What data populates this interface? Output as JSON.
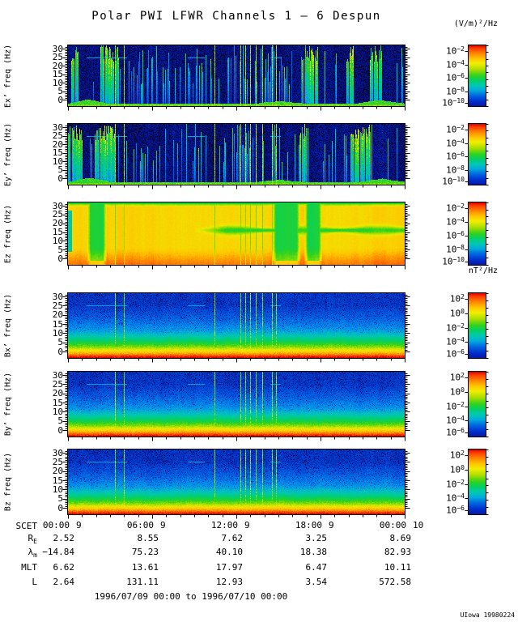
{
  "title": "Polar PWI LFWR Channels 1 — 6 Despun",
  "caption": "1996/07/09 00:00 to 1996/07/10 00:00",
  "credit": "UIowa 19980224",
  "units": {
    "electric": "(V/m)²/Hz",
    "magnetic": "nT²/Hz"
  },
  "yticks": [
    "30",
    "25",
    "20",
    "15",
    "10",
    "5",
    "0"
  ],
  "xaxis": {
    "label": "SCET",
    "ticks": [
      {
        "time": "00:00",
        "day": "9"
      },
      {
        "time": "06:00",
        "day": "9"
      },
      {
        "time": "12:00",
        "day": "9"
      },
      {
        "time": "18:00",
        "day": "9"
      },
      {
        "time": "00:00",
        "day": "10"
      }
    ]
  },
  "ephemeris": {
    "rows": [
      {
        "label": "R",
        "sub": "E",
        "values": [
          "2.52",
          "8.55",
          "7.62",
          "3.25",
          "8.69"
        ]
      },
      {
        "label": "λ",
        "sub": "m",
        "values": [
          "−14.84",
          "75.23",
          "40.10",
          "18.38",
          "82.93"
        ]
      },
      {
        "label": "MLT",
        "sub": "",
        "values": [
          "6.62",
          "13.61",
          "17.97",
          "6.47",
          "10.11"
        ]
      },
      {
        "label": "L",
        "sub": "",
        "values": [
          "2.64",
          "131.11",
          "12.93",
          "3.54",
          "572.58"
        ]
      }
    ]
  },
  "colorbars": {
    "electric": {
      "exps": [
        "−2",
        "−4",
        "−6",
        "−8",
        "−10"
      ]
    },
    "magnetic": {
      "exps": [
        "2",
        "0",
        "−2",
        "−4",
        "−6"
      ]
    }
  },
  "panels": [
    {
      "ylabel": "Ex’ freq (Hz)",
      "cbar": "electric",
      "kind": "E",
      "seed": 11
    },
    {
      "ylabel": "Ey’ freq (Hz)",
      "cbar": "electric",
      "kind": "E",
      "seed": 22
    },
    {
      "ylabel": "Ez freq (Hz)",
      "cbar": "electric",
      "kind": "Ez",
      "seed": 33
    },
    {
      "ylabel": "Bx’ freq (Hz)",
      "cbar": "magnetic",
      "kind": "B",
      "seed": 44
    },
    {
      "ylabel": "By’ freq (Hz)",
      "cbar": "magnetic",
      "kind": "B",
      "seed": 55
    },
    {
      "ylabel": "Bz freq (Hz)",
      "cbar": "magnetic",
      "kind": "B",
      "seed": 66
    }
  ],
  "render": {
    "event_lines": [
      0.14,
      0.166,
      0.435,
      0.512,
      0.527,
      0.542,
      0.557,
      0.577,
      0.605,
      0.617
    ],
    "artifact_segments": [
      [
        0.055,
        0.175
      ],
      [
        0.355,
        0.405
      ],
      [
        0.6,
        0.63
      ]
    ],
    "e_bright": [
      [
        [
          0.01,
          0.032
        ],
        [
          0.095,
          0.15
        ],
        [
          0.695,
          0.74
        ],
        [
          0.828,
          0.846
        ],
        [
          0.895,
          0.93
        ]
      ],
      [
        [
          0.0,
          0.04
        ],
        [
          0.08,
          0.14
        ],
        [
          0.688,
          0.712
        ],
        [
          0.838,
          0.902
        ]
      ]
    ],
    "e_band_humps": [
      [
        0.0,
        0.12,
        5
      ],
      [
        0.55,
        0.7,
        3
      ],
      [
        0.86,
        1.0,
        4
      ]
    ],
    "ez": {
      "green_regions": [
        [
          0.055,
          0.115
        ],
        [
          0.605,
          0.69
        ],
        [
          0.7,
          0.755
        ]
      ],
      "hband_start": 0.37,
      "hband_center": 0.44
    }
  },
  "chart_data": {
    "type": "heatmap",
    "title": "Polar PWI LFWR Channels 1 — 6 Despun",
    "subtitle": "1996/07/09 00:00 to 1996/07/10 00:00",
    "x_axis": {
      "label": "SCET",
      "tick_labels": [
        "00:00",
        "06:00",
        "12:00",
        "18:00",
        "00:00"
      ],
      "day_labels": [
        "9",
        "9",
        "9",
        "9",
        "10"
      ],
      "minor_tick_interval_hours": 1
    },
    "y_axis": {
      "label": "freq (Hz)",
      "range": [
        0,
        33
      ],
      "ticks": [
        0,
        5,
        10,
        15,
        20,
        25,
        30
      ]
    },
    "panels": [
      {
        "name": "Ex’",
        "units": "(V/m)²/Hz",
        "colorbar_ticks": [
          "1e-2",
          "1e-4",
          "1e-6",
          "1e-8",
          "1e-10"
        ],
        "description": "dark blue broadband background with many narrow cyan/green vertical bursts, thin green band at lowest frequencies, bright burst clusters near 00:30, 02:30-03:30, 12:00-15:00, 20:00-22:00"
      },
      {
        "name": "Ey’",
        "units": "(V/m)²/Hz",
        "colorbar_ticks": [
          "1e-2",
          "1e-4",
          "1e-6",
          "1e-8",
          "1e-10"
        ],
        "description": "similar to Ex’: dark blue with dense vertical cyan/green bursts and low-frequency green band"
      },
      {
        "name": "Ez",
        "units": "(V/m)²/Hz",
        "colorbar_ticks": [
          "1e-2",
          "1e-4",
          "1e-6",
          "1e-8",
          "1e-10"
        ],
        "description": "high broadband yellow/orange intensity all day; green lower-intensity patches near 01:30-03:00 and 15:00-18:00; green band near 15-18 Hz in second half of day"
      },
      {
        "name": "Bx’",
        "units": "nT²/Hz",
        "colorbar_ticks": [
          "1e2",
          "1e0",
          "1e-2",
          "1e-4",
          "1e-6"
        ],
        "description": "intense red/orange band below ~3 Hz fading through yellow-green-cyan to blue noise above ~10 Hz; narrow green/yellow interference lines near 03:30, 10:30, 12:20-14:50"
      },
      {
        "name": "By’",
        "units": "nT²/Hz",
        "colorbar_ticks": [
          "1e2",
          "1e0",
          "1e-2",
          "1e-4",
          "1e-6"
        ],
        "description": "same structure as Bx’"
      },
      {
        "name": "Bz",
        "units": "nT²/Hz",
        "colorbar_ticks": [
          "1e2",
          "1e0",
          "1e-2",
          "1e-4",
          "1e-6"
        ],
        "description": "same structure as Bx’"
      }
    ],
    "ephemeris_table": {
      "columns_at": [
        "00:00",
        "06:00",
        "12:00",
        "18:00",
        "00:00 (day 10)"
      ],
      "rows": [
        {
          "label": "RE",
          "values": [
            2.52,
            8.55,
            7.62,
            3.25,
            8.69
          ]
        },
        {
          "label": "λm",
          "values": [
            -14.84,
            75.23,
            40.1,
            18.38,
            82.93
          ]
        },
        {
          "label": "MLT",
          "values": [
            6.62,
            13.61,
            17.97,
            6.47,
            10.11
          ]
        },
        {
          "label": "L",
          "values": [
            2.64,
            131.11,
            12.93,
            3.54,
            572.58
          ]
        }
      ]
    },
    "credit": "UIowa 19980224"
  }
}
